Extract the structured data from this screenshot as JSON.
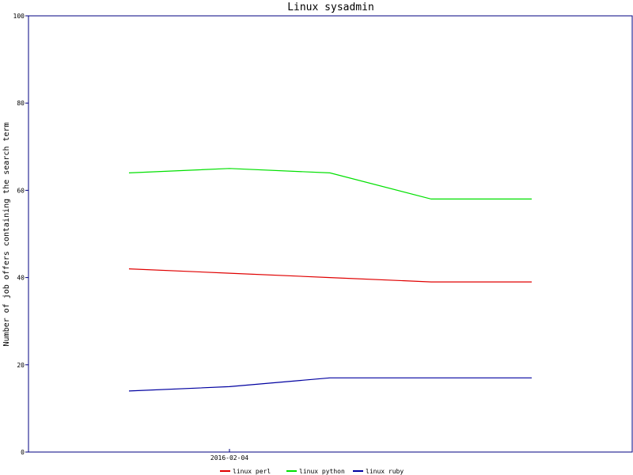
{
  "chart_data": {
    "type": "line",
    "title": "Linux sysadmin",
    "xlabel": "",
    "ylabel": "Number of job offers containing the search term",
    "ylim": [
      0,
      100
    ],
    "y_ticks": [
      "0",
      "20",
      "40",
      "60",
      "80",
      "100"
    ],
    "x_ticks": [
      "2016-02-04"
    ],
    "grid": false,
    "legend_position": "bottom",
    "x": [
      "",
      "2016-02-04",
      "",
      "",
      ""
    ],
    "series": [
      {
        "name": "linux perl",
        "color": "#e00000",
        "values": [
          42,
          41,
          40,
          39,
          39
        ]
      },
      {
        "name": "linux python",
        "color": "#00e000",
        "values": [
          64,
          65,
          64,
          58,
          58
        ]
      },
      {
        "name": "linux ruby",
        "color": "#0000a0",
        "values": [
          14,
          15,
          17,
          17,
          17
        ]
      }
    ]
  }
}
